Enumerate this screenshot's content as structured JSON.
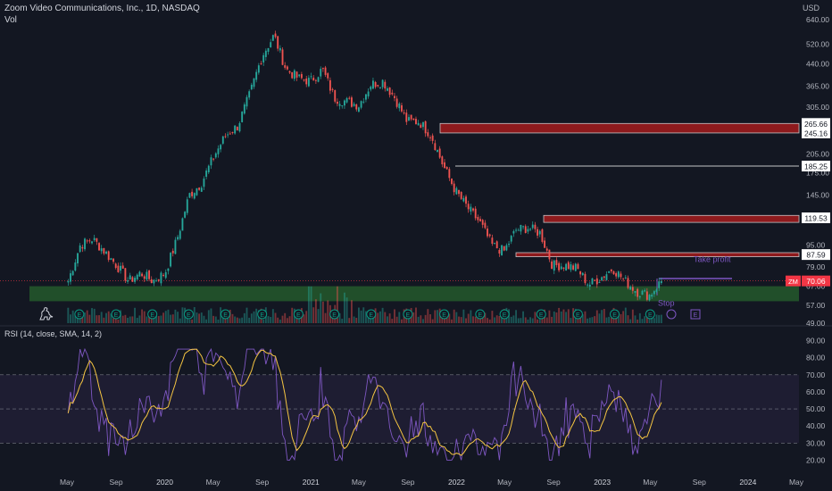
{
  "header": {
    "title": "Zoom Video Communications, Inc., 1D, NASDAQ",
    "vol_label": "Vol",
    "currency": "USD"
  },
  "rsi": {
    "label": "RSI (14, close, SMA, 14, 2)"
  },
  "colors": {
    "background": "#131722",
    "up": "#26a69a",
    "down": "#ef5350",
    "rsi_line": "#7e57c2",
    "rsi_ma": "#f5c542",
    "support_zone": "#2e7d32",
    "resistance_zone": "#b71c1c",
    "current_price": "#f23645",
    "target_line": "#7e57c2"
  },
  "annotations": {
    "take_profit": "Take profit",
    "stop": "Stop",
    "ticker": "ZM",
    "price": "70.06"
  },
  "chart_data": [
    {
      "type": "candlestick",
      "title": "Zoom Video Communications, Inc., 1D, NASDAQ",
      "y_scale": "log",
      "ylim": [
        49,
        690
      ],
      "y_ticks": [
        "640.00",
        "520.00",
        "440.00",
        "365.00",
        "305.00",
        "245.00",
        "205.00",
        "175.00",
        "145.00",
        "119.00",
        "95.00",
        "79.00",
        "67.00",
        "57.00",
        "49.00"
      ],
      "x_ticks": [
        "May",
        "Sep",
        "2020",
        "May",
        "Sep",
        "2021",
        "May",
        "Sep",
        "2022",
        "May",
        "Sep",
        "2023",
        "May",
        "Sep",
        "2024",
        "May"
      ],
      "close_path": [
        [
          "2019-05",
          70
        ],
        [
          "2019-06",
          95
        ],
        [
          "2019-07",
          100
        ],
        [
          "2019-08",
          90
        ],
        [
          "2019-09",
          80
        ],
        [
          "2019-10",
          70
        ],
        [
          "2019-11",
          75
        ],
        [
          "2019-12",
          70
        ],
        [
          "2020-01",
          75
        ],
        [
          "2020-02",
          100
        ],
        [
          "2020-03",
          145
        ],
        [
          "2020-04",
          160
        ],
        [
          "2020-05",
          200
        ],
        [
          "2020-06",
          240
        ],
        [
          "2020-07",
          260
        ],
        [
          "2020-08",
          340
        ],
        [
          "2020-09",
          470
        ],
        [
          "2020-10",
          560
        ],
        [
          "2020-11",
          420
        ],
        [
          "2020-12",
          390
        ],
        [
          "2021-01",
          380
        ],
        [
          "2021-02",
          420
        ],
        [
          "2021-03",
          330
        ],
        [
          "2021-04",
          320
        ],
        [
          "2021-05",
          310
        ],
        [
          "2021-06",
          370
        ],
        [
          "2021-07",
          380
        ],
        [
          "2021-08",
          330
        ],
        [
          "2021-09",
          270
        ],
        [
          "2021-10",
          270
        ],
        [
          "2021-11",
          240
        ],
        [
          "2021-12",
          185
        ],
        [
          "2022-01",
          150
        ],
        [
          "2022-02",
          130
        ],
        [
          "2022-03",
          115
        ],
        [
          "2022-04",
          95
        ],
        [
          "2022-05",
          90
        ],
        [
          "2022-06",
          108
        ],
        [
          "2022-07",
          110
        ],
        [
          "2022-08",
          105
        ],
        [
          "2022-09",
          80
        ],
        [
          "2022-10",
          80
        ],
        [
          "2022-11",
          78
        ],
        [
          "2022-12",
          68
        ],
        [
          "2023-01",
          72
        ],
        [
          "2023-02",
          78
        ],
        [
          "2023-03",
          70
        ],
        [
          "2023-04",
          64
        ],
        [
          "2023-05",
          62
        ],
        [
          "2023-06",
          70
        ]
      ],
      "price_levels": [
        {
          "label": "265.66",
          "kind": "resistance-top"
        },
        {
          "label": "245.16",
          "kind": "resistance-bottom"
        },
        {
          "label": "185.25",
          "kind": "line"
        },
        {
          "label": "119.53",
          "kind": "resistance"
        },
        {
          "label": "87.59",
          "kind": "resistance"
        },
        {
          "label": "70.06",
          "kind": "current"
        }
      ],
      "zones": [
        {
          "name": "support",
          "low": 59,
          "high": 67
        },
        {
          "name": "resistance",
          "low": 245.16,
          "high": 265.66
        },
        {
          "name": "resistance",
          "low": 115,
          "high": 122
        },
        {
          "name": "resistance",
          "low": 86,
          "high": 89
        }
      ]
    },
    {
      "type": "line",
      "title": "RSI (14, close, SMA, 14, 2)",
      "ylim": [
        15,
        95
      ],
      "y_ticks": [
        "90.00",
        "80.00",
        "70.00",
        "60.00",
        "50.00",
        "40.00",
        "30.00",
        "20.00"
      ],
      "bands": [
        30,
        50,
        70
      ],
      "range": [
        10,
        85
      ]
    }
  ]
}
